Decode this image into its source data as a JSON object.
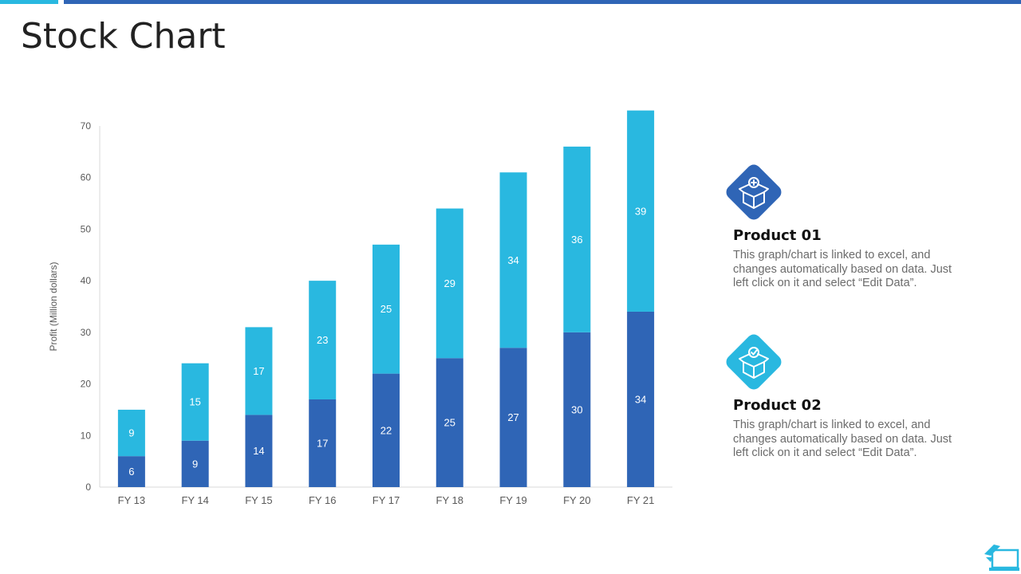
{
  "page": {
    "title": "Stock Chart"
  },
  "colors": {
    "accent_light": "#29b8e0",
    "accent_dark": "#2f65b6"
  },
  "chart_data": {
    "type": "bar",
    "stacked": true,
    "categories": [
      "FY 13",
      "FY 14",
      "FY 15",
      "FY 16",
      "FY 17",
      "FY 18",
      "FY 19",
      "FY 20",
      "FY 21"
    ],
    "series": [
      {
        "values": [
          6,
          9,
          14,
          17,
          22,
          25,
          27,
          30,
          34
        ],
        "color": "#2f65b6"
      },
      {
        "values": [
          9,
          15,
          17,
          23,
          25,
          29,
          34,
          36,
          39
        ],
        "color": "#29b8e0"
      }
    ],
    "ylabel": "Profit   (Million dollars)",
    "ylim": [
      0,
      70
    ],
    "yticks": [
      0,
      10,
      20,
      30,
      40,
      50,
      60,
      70
    ],
    "grid": false,
    "legend": "right"
  },
  "legend": {
    "items": [
      {
        "heading": "Product 01",
        "text": "This graph/chart is linked to excel, and changes automatically based on data. Just left click on it and select “Edit Data”.",
        "icon": "box-plus-icon",
        "color": "#2f65b6"
      },
      {
        "heading": "Product 02",
        "text": "This graph/chart is linked to excel, and changes automatically based on data. Just left click on it and select “Edit Data”.",
        "icon": "box-check-icon",
        "color": "#29b8e0"
      }
    ]
  }
}
